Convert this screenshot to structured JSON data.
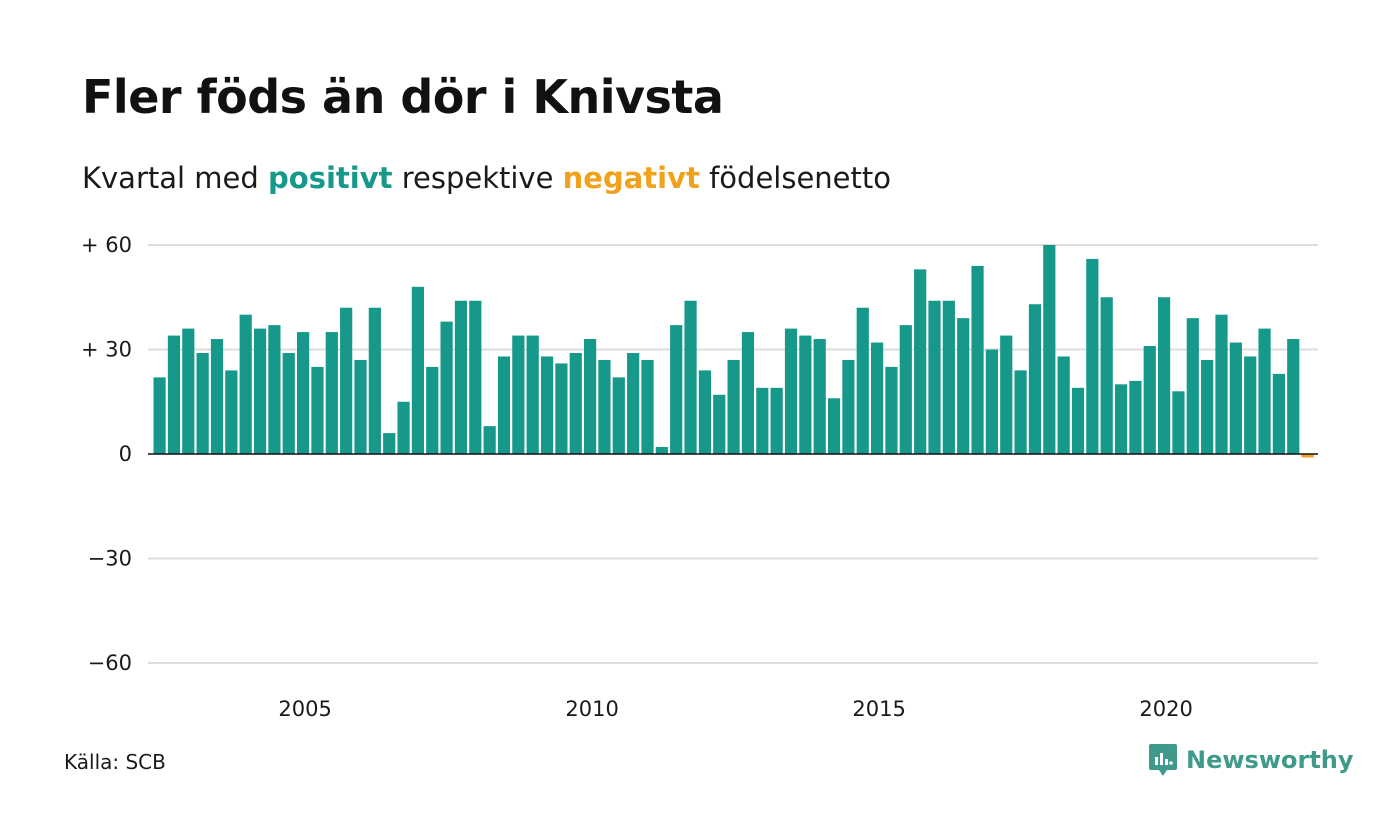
{
  "colors": {
    "positive": "#16998a",
    "negative": "#f0a21c",
    "grid": "#dddddd",
    "baseline": "#111111",
    "brand": "#3f9a8c"
  },
  "header": {
    "title": "Fler föds än dör i Knivsta",
    "subtitle_pre": "Kvartal med",
    "subtitle_pos": "positivt",
    "subtitle_mid": "respektive",
    "subtitle_neg": "negativt",
    "subtitle_post": "födelsenetto"
  },
  "footer": {
    "source": "Källa: SCB",
    "brand_name": "Newsworthy",
    "brand_icon": "newsworthy-logo-icon"
  },
  "chart_data": {
    "type": "bar",
    "x_unit": "quarter",
    "first_quarter": "2003-Q1",
    "ylim": [
      -60,
      60
    ],
    "yticks": [
      {
        "value": 60,
        "label": "+ 60"
      },
      {
        "value": 30,
        "label": "+ 30"
      },
      {
        "value": 0,
        "label": "0"
      },
      {
        "value": -30,
        "label": "−30"
      },
      {
        "value": -60,
        "label": "−60"
      }
    ],
    "xticks": [
      {
        "year": 2005,
        "label": "2005"
      },
      {
        "year": 2010,
        "label": "2010"
      },
      {
        "year": 2015,
        "label": "2015"
      },
      {
        "year": 2020,
        "label": "2020"
      }
    ],
    "grid": true,
    "values": [
      22,
      34,
      36,
      29,
      33,
      24,
      40,
      36,
      37,
      29,
      35,
      25,
      35,
      42,
      27,
      42,
      6,
      15,
      48,
      25,
      38,
      44,
      44,
      8,
      28,
      34,
      34,
      28,
      26,
      29,
      33,
      27,
      22,
      29,
      27,
      2,
      37,
      44,
      24,
      17,
      27,
      35,
      19,
      19,
      36,
      34,
      33,
      16,
      27,
      42,
      32,
      25,
      37,
      53,
      44,
      44,
      39,
      54,
      30,
      34,
      24,
      43,
      60,
      28,
      19,
      56,
      45,
      20,
      21,
      31,
      45,
      18,
      39,
      27,
      40,
      32,
      28,
      36,
      23,
      33,
      -1
    ]
  }
}
